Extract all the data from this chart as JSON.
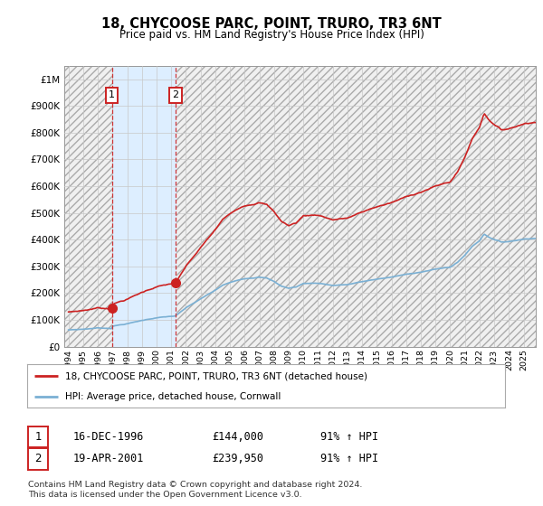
{
  "title": "18, CHYCOOSE PARC, POINT, TRURO, TR3 6NT",
  "subtitle": "Price paid vs. HM Land Registry's House Price Index (HPI)",
  "ylim": [
    0,
    1050000
  ],
  "xlim_start": 1993.7,
  "xlim_end": 2025.8,
  "yticks": [
    0,
    100000,
    200000,
    300000,
    400000,
    500000,
    600000,
    700000,
    800000,
    900000,
    1000000
  ],
  "ytick_labels": [
    "£0",
    "£100K",
    "£200K",
    "£300K",
    "£400K",
    "£500K",
    "£600K",
    "£700K",
    "£800K",
    "£900K",
    "£1M"
  ],
  "xticks": [
    1994,
    1995,
    1996,
    1997,
    1998,
    1999,
    2000,
    2001,
    2002,
    2003,
    2004,
    2005,
    2006,
    2007,
    2008,
    2009,
    2010,
    2011,
    2012,
    2013,
    2014,
    2015,
    2016,
    2017,
    2018,
    2019,
    2020,
    2021,
    2022,
    2023,
    2024,
    2025
  ],
  "sale1_x": 1996.96,
  "sale1_y": 144000,
  "sale2_x": 2001.3,
  "sale2_y": 239950,
  "legend_line1": "18, CHYCOOSE PARC, POINT, TRURO, TR3 6NT (detached house)",
  "legend_line2": "HPI: Average price, detached house, Cornwall",
  "hpi_color": "#7ab0d4",
  "sale_color": "#cc2222",
  "sale_region_color": "#ddeeff",
  "hatch_color": "#cccccc",
  "grid_color": "#c8c8c8",
  "footnote_line1": "Contains HM Land Registry data © Crown copyright and database right 2024.",
  "footnote_line2": "This data is licensed under the Open Government Licence v3.0."
}
